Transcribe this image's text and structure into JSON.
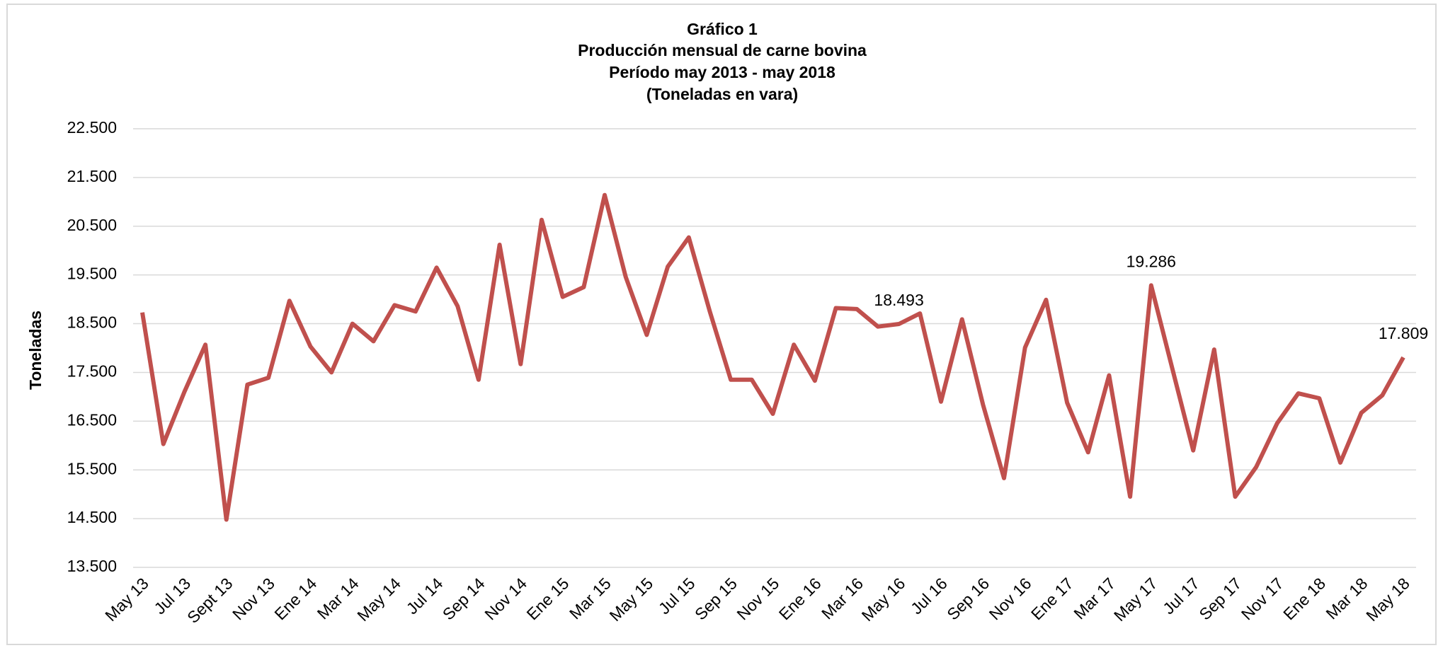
{
  "chart_data": {
    "type": "line",
    "title": "Gráfico 1",
    "subtitle": [
      "Producción mensual de carne bovina",
      "Período may 2013 -  may 2018",
      "(Toneladas en vara)"
    ],
    "y_label": "Toneladas",
    "categories": [
      "May 13",
      null,
      "Jul 13",
      null,
      "Sept 13",
      null,
      "Nov 13",
      null,
      "Ene 14",
      null,
      "Mar 14",
      null,
      "May 14",
      null,
      "Jul 14",
      null,
      "Sep 14",
      null,
      "Nov 14",
      null,
      "Ene 15",
      null,
      "Mar 15",
      null,
      "May 15",
      null,
      "Jul 15",
      null,
      "Sep 15",
      null,
      "Nov 15",
      null,
      "Ene 16",
      null,
      "Mar 16",
      null,
      "May 16",
      null,
      "Jul 16",
      null,
      "Sep 16",
      null,
      "Nov 16",
      null,
      "Ene 17",
      null,
      "Mar 17",
      null,
      "May 17",
      null,
      "Jul 17",
      null,
      "Sep 17",
      null,
      "Nov 17",
      null,
      "Ene 18",
      null,
      "Mar 18",
      null,
      "May 18"
    ],
    "series": [
      {
        "name": "Toneladas",
        "color": "#c0504d",
        "values": [
          18730,
          16030,
          17100,
          18070,
          14480,
          17250,
          17390,
          18970,
          18030,
          17500,
          18500,
          18140,
          18880,
          18750,
          19650,
          18860,
          17350,
          20120,
          17670,
          20630,
          19050,
          19250,
          21140,
          19460,
          18270,
          19670,
          20270,
          18750,
          17350,
          17350,
          16650,
          18070,
          17330,
          18820,
          18800,
          18440,
          18493,
          18710,
          16900,
          18590,
          16840,
          15330,
          18010,
          18990,
          16880,
          15860,
          17440,
          14950,
          19286,
          17590,
          15900,
          17970,
          14950,
          15560,
          16460,
          17070,
          16970,
          15650,
          16670,
          17030,
          17809
        ],
        "value_labels": [
          null,
          null,
          null,
          null,
          null,
          null,
          null,
          null,
          null,
          null,
          null,
          null,
          null,
          null,
          null,
          null,
          null,
          null,
          null,
          null,
          null,
          null,
          null,
          null,
          null,
          null,
          null,
          null,
          null,
          null,
          null,
          null,
          null,
          null,
          null,
          null,
          "18.493",
          null,
          null,
          null,
          null,
          null,
          null,
          null,
          null,
          null,
          null,
          null,
          "19.286",
          null,
          null,
          null,
          null,
          null,
          null,
          null,
          null,
          null,
          null,
          null,
          "17.809"
        ]
      }
    ],
    "ylim": [
      13500,
      22500
    ],
    "yticks": [
      {
        "value": 13500,
        "label": "13.500"
      },
      {
        "value": 14500,
        "label": "14.500"
      },
      {
        "value": 15500,
        "label": "15.500"
      },
      {
        "value": 16500,
        "label": "16.500"
      },
      {
        "value": 17500,
        "label": "17.500"
      },
      {
        "value": 18500,
        "label": "18.500"
      },
      {
        "value": 19500,
        "label": "19.500"
      },
      {
        "value": 20500,
        "label": "20.500"
      },
      {
        "value": 21500,
        "label": "21.500"
      },
      {
        "value": 22500,
        "label": "22.500"
      }
    ],
    "grid": true
  }
}
